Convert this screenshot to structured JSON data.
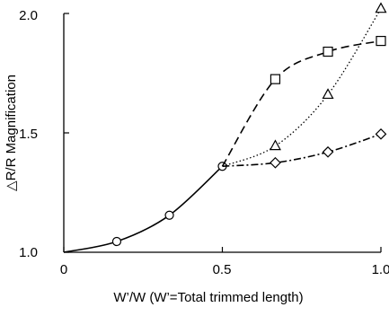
{
  "chart_data": {
    "type": "line",
    "xlabel": "W’/W (W’=Total trimmed length)",
    "ylabel": "△R/R Magnification",
    "xlim": [
      0,
      1.0
    ],
    "ylim": [
      1.0,
      2.0
    ],
    "x_ticks": [
      "0",
      "0.5",
      "1.0"
    ],
    "y_ticks": [
      "1.0",
      "1.5",
      "2.0"
    ],
    "grid": false,
    "legend": "none",
    "series": [
      {
        "marker": "circle",
        "line": "solid",
        "color": "#000000",
        "x": [
          0.0,
          0.167,
          0.333,
          0.5
        ],
        "y": [
          1.0,
          1.045,
          1.155,
          1.36
        ],
        "marker_x": [
          0.167,
          0.333,
          0.5
        ],
        "marker_y": [
          1.045,
          1.155,
          1.36
        ]
      },
      {
        "marker": "square",
        "line": "dashed",
        "color": "#000000",
        "x": [
          0.5,
          0.667,
          0.833,
          1.0
        ],
        "y": [
          1.36,
          1.725,
          1.84,
          1.885
        ],
        "marker_x": [
          0.667,
          0.833,
          1.0
        ],
        "marker_y": [
          1.725,
          1.84,
          1.885
        ]
      },
      {
        "marker": "triangle",
        "line": "dotted",
        "color": "#000000",
        "x": [
          0.5,
          0.667,
          0.833,
          1.0
        ],
        "y": [
          1.36,
          1.445,
          1.66,
          2.02
        ],
        "marker_x": [
          0.667,
          0.833,
          1.0
        ],
        "marker_y": [
          1.445,
          1.66,
          2.02
        ]
      },
      {
        "marker": "diamond",
        "line": "dash-dot",
        "color": "#000000",
        "x": [
          0.5,
          0.667,
          0.833,
          1.0
        ],
        "y": [
          1.36,
          1.375,
          1.42,
          1.495
        ],
        "marker_x": [
          0.667,
          0.833,
          1.0
        ],
        "marker_y": [
          1.375,
          1.42,
          1.495
        ]
      }
    ]
  }
}
